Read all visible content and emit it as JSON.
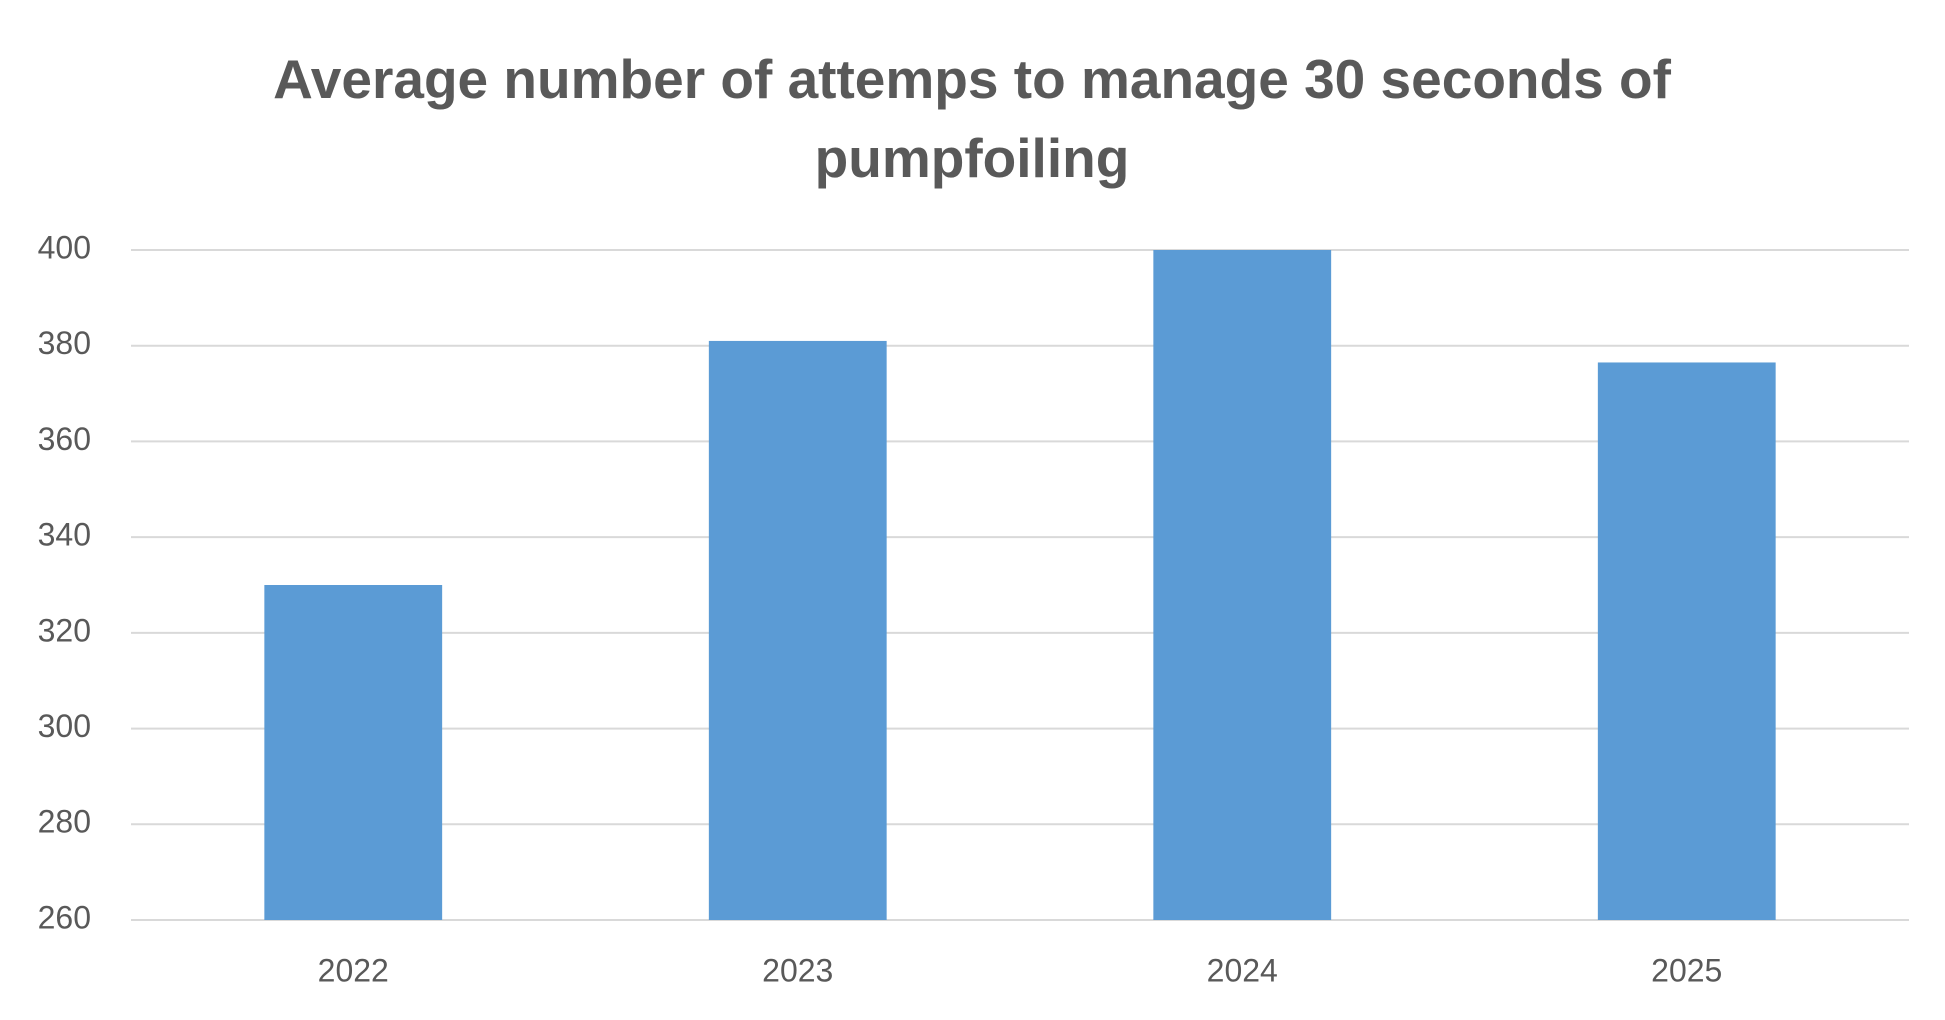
{
  "chart_data": {
    "type": "bar",
    "title": "Average number of attemps to manage 30 seconds of pumpfoiling",
    "categories": [
      "2022",
      "2023",
      "2024",
      "2025"
    ],
    "values": [
      330,
      381,
      400,
      376.5
    ],
    "color": "#5b9bd5",
    "ylim": [
      260,
      400
    ],
    "yticks": [
      260,
      280,
      300,
      320,
      340,
      360,
      380,
      400
    ],
    "grid": true
  }
}
